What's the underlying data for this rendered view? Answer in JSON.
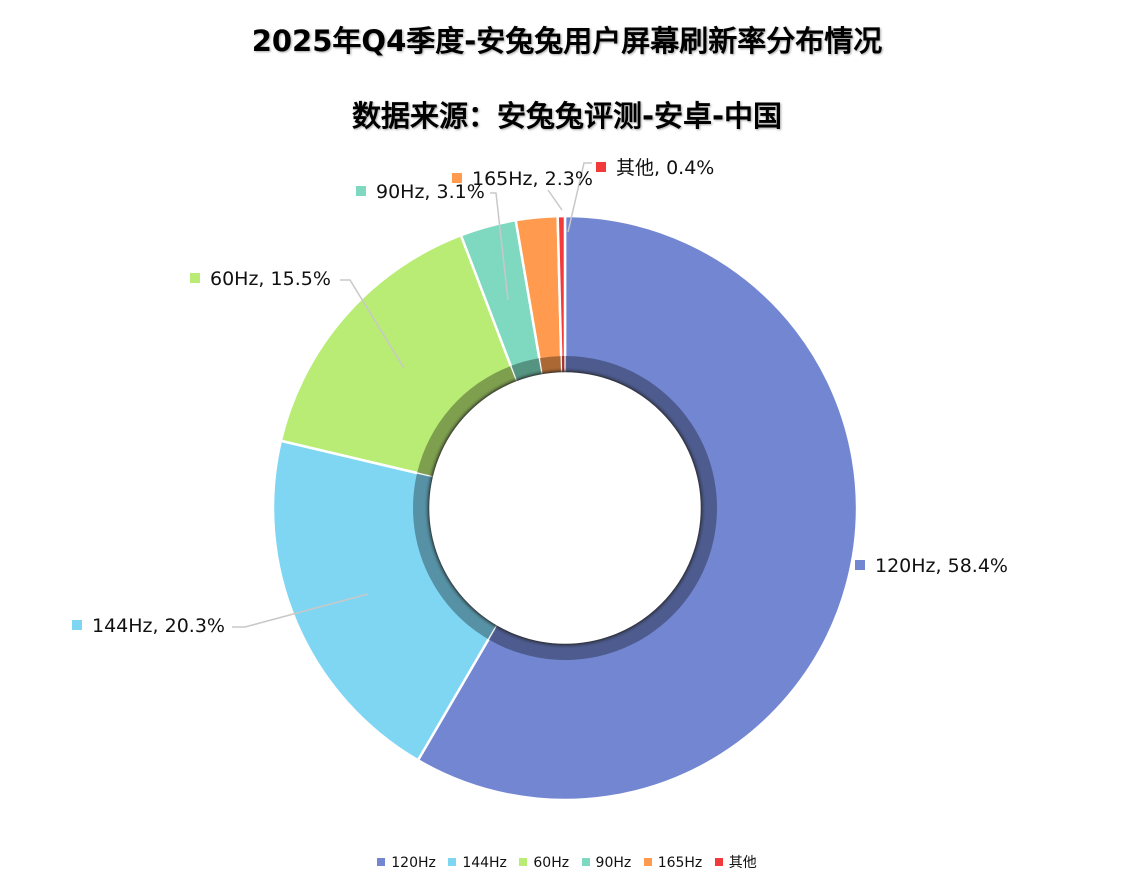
{
  "title": "2025年Q4季度-安兔兔用户屏幕刷新率分布情况",
  "subtitle": "数据来源：安兔兔评测-安卓-中国",
  "chart_data": {
    "type": "pie",
    "variant": "doughnut",
    "title": "2025年Q4季度-安兔兔用户屏幕刷新率分布情况",
    "subtitle": "数据来源：安兔兔评测-安卓-中国",
    "categories": [
      "120Hz",
      "144Hz",
      "60Hz",
      "90Hz",
      "165Hz",
      "其他"
    ],
    "values": [
      58.4,
      20.3,
      15.5,
      3.1,
      2.3,
      0.4
    ],
    "unit": "%",
    "colors": [
      "#7386d2",
      "#7fd6f3",
      "#b8ec74",
      "#7fd9c0",
      "#ff9a4e",
      "#f23a3a"
    ],
    "data_labels": [
      "120Hz, 58.4%",
      "144Hz, 20.3%",
      "60Hz, 15.5%",
      "90Hz, 3.1%",
      "165Hz, 2.3%",
      "其他, 0.4%"
    ],
    "legend_position": "bottom",
    "start_angle_deg": 0,
    "direction": "clockwise"
  },
  "legend": {
    "items": [
      {
        "label": "120Hz",
        "color": "#7386d2"
      },
      {
        "label": "144Hz",
        "color": "#7fd6f3"
      },
      {
        "label": "60Hz",
        "color": "#b8ec74"
      },
      {
        "label": "90Hz",
        "color": "#7fd9c0"
      },
      {
        "label": "165Hz",
        "color": "#ff9a4e"
      },
      {
        "label": "其他",
        "color": "#f23a3a"
      }
    ]
  }
}
